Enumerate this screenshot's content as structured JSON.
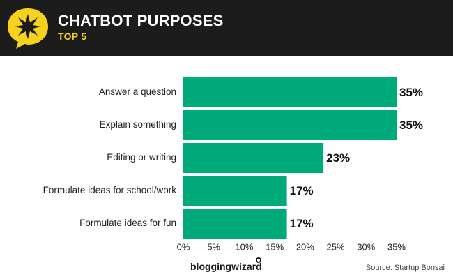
{
  "header": {
    "title": "CHATBOT PURPOSES",
    "subtitle": "TOP 5"
  },
  "colors": {
    "header_bg": "#1c1c1c",
    "accent": "#f5d21b",
    "bar": "#00aa7a"
  },
  "icons": {
    "badge": "star-speech-bubble-icon"
  },
  "chart_data": {
    "type": "bar",
    "orientation": "horizontal",
    "categories": [
      "Answer a question",
      "Explain something",
      "Editing or writing",
      "Formulate ideas for school/work",
      "Formulate ideas for fun"
    ],
    "values": [
      35,
      35,
      23,
      17,
      17
    ],
    "value_labels": [
      "35%",
      "35%",
      "23%",
      "17%",
      "17%"
    ],
    "xlim": [
      0,
      35
    ],
    "xticks": [
      0,
      5,
      10,
      15,
      20,
      25,
      30,
      35
    ],
    "xtick_labels": [
      "0%",
      "5%",
      "10%",
      "15%",
      "20%",
      "25%",
      "30%",
      "35%"
    ],
    "grid": false,
    "legend": "none"
  },
  "footer": {
    "logo": "bloggingwizard",
    "source": "Source:  Startup Bonsai"
  }
}
